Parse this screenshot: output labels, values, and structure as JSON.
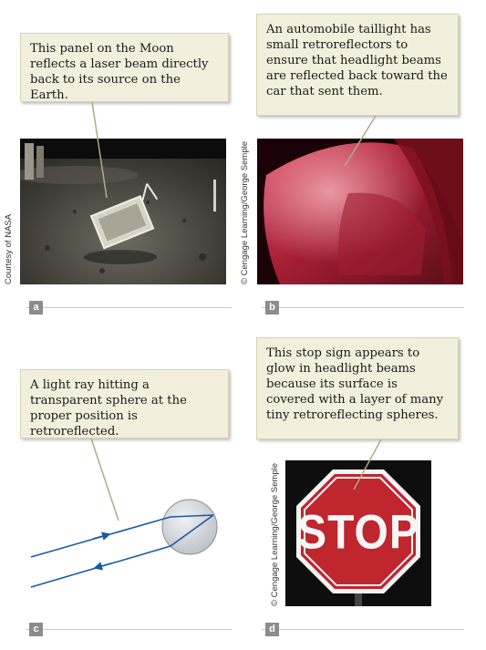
{
  "panels": {
    "a": {
      "label": "a",
      "callout": "This panel on the Moon reflects a laser beam directly back to its source on the Earth.",
      "credit": "Courtesy of NASA"
    },
    "b": {
      "label": "b",
      "callout": "An automobile taillight has small retroreflectors to ensure that headlight beams are reflected back toward the car that sent them.",
      "credit": "© Cengage Learning/George Semple"
    },
    "c": {
      "label": "c",
      "callout": "A light ray hitting a transparent sphere at the proper position is retroreflected."
    },
    "d": {
      "label": "d",
      "callout": "This stop sign appears to glow in headlight beams because its surface is covered with a layer of many tiny retroreflecting spheres.",
      "credit": "© Cengage Learning/George Semple",
      "sign_text": "STOP"
    }
  },
  "colors": {
    "callout_bg": "#f2efdc",
    "ray": "#1a5aa6",
    "stop_red": "#c0262d"
  }
}
